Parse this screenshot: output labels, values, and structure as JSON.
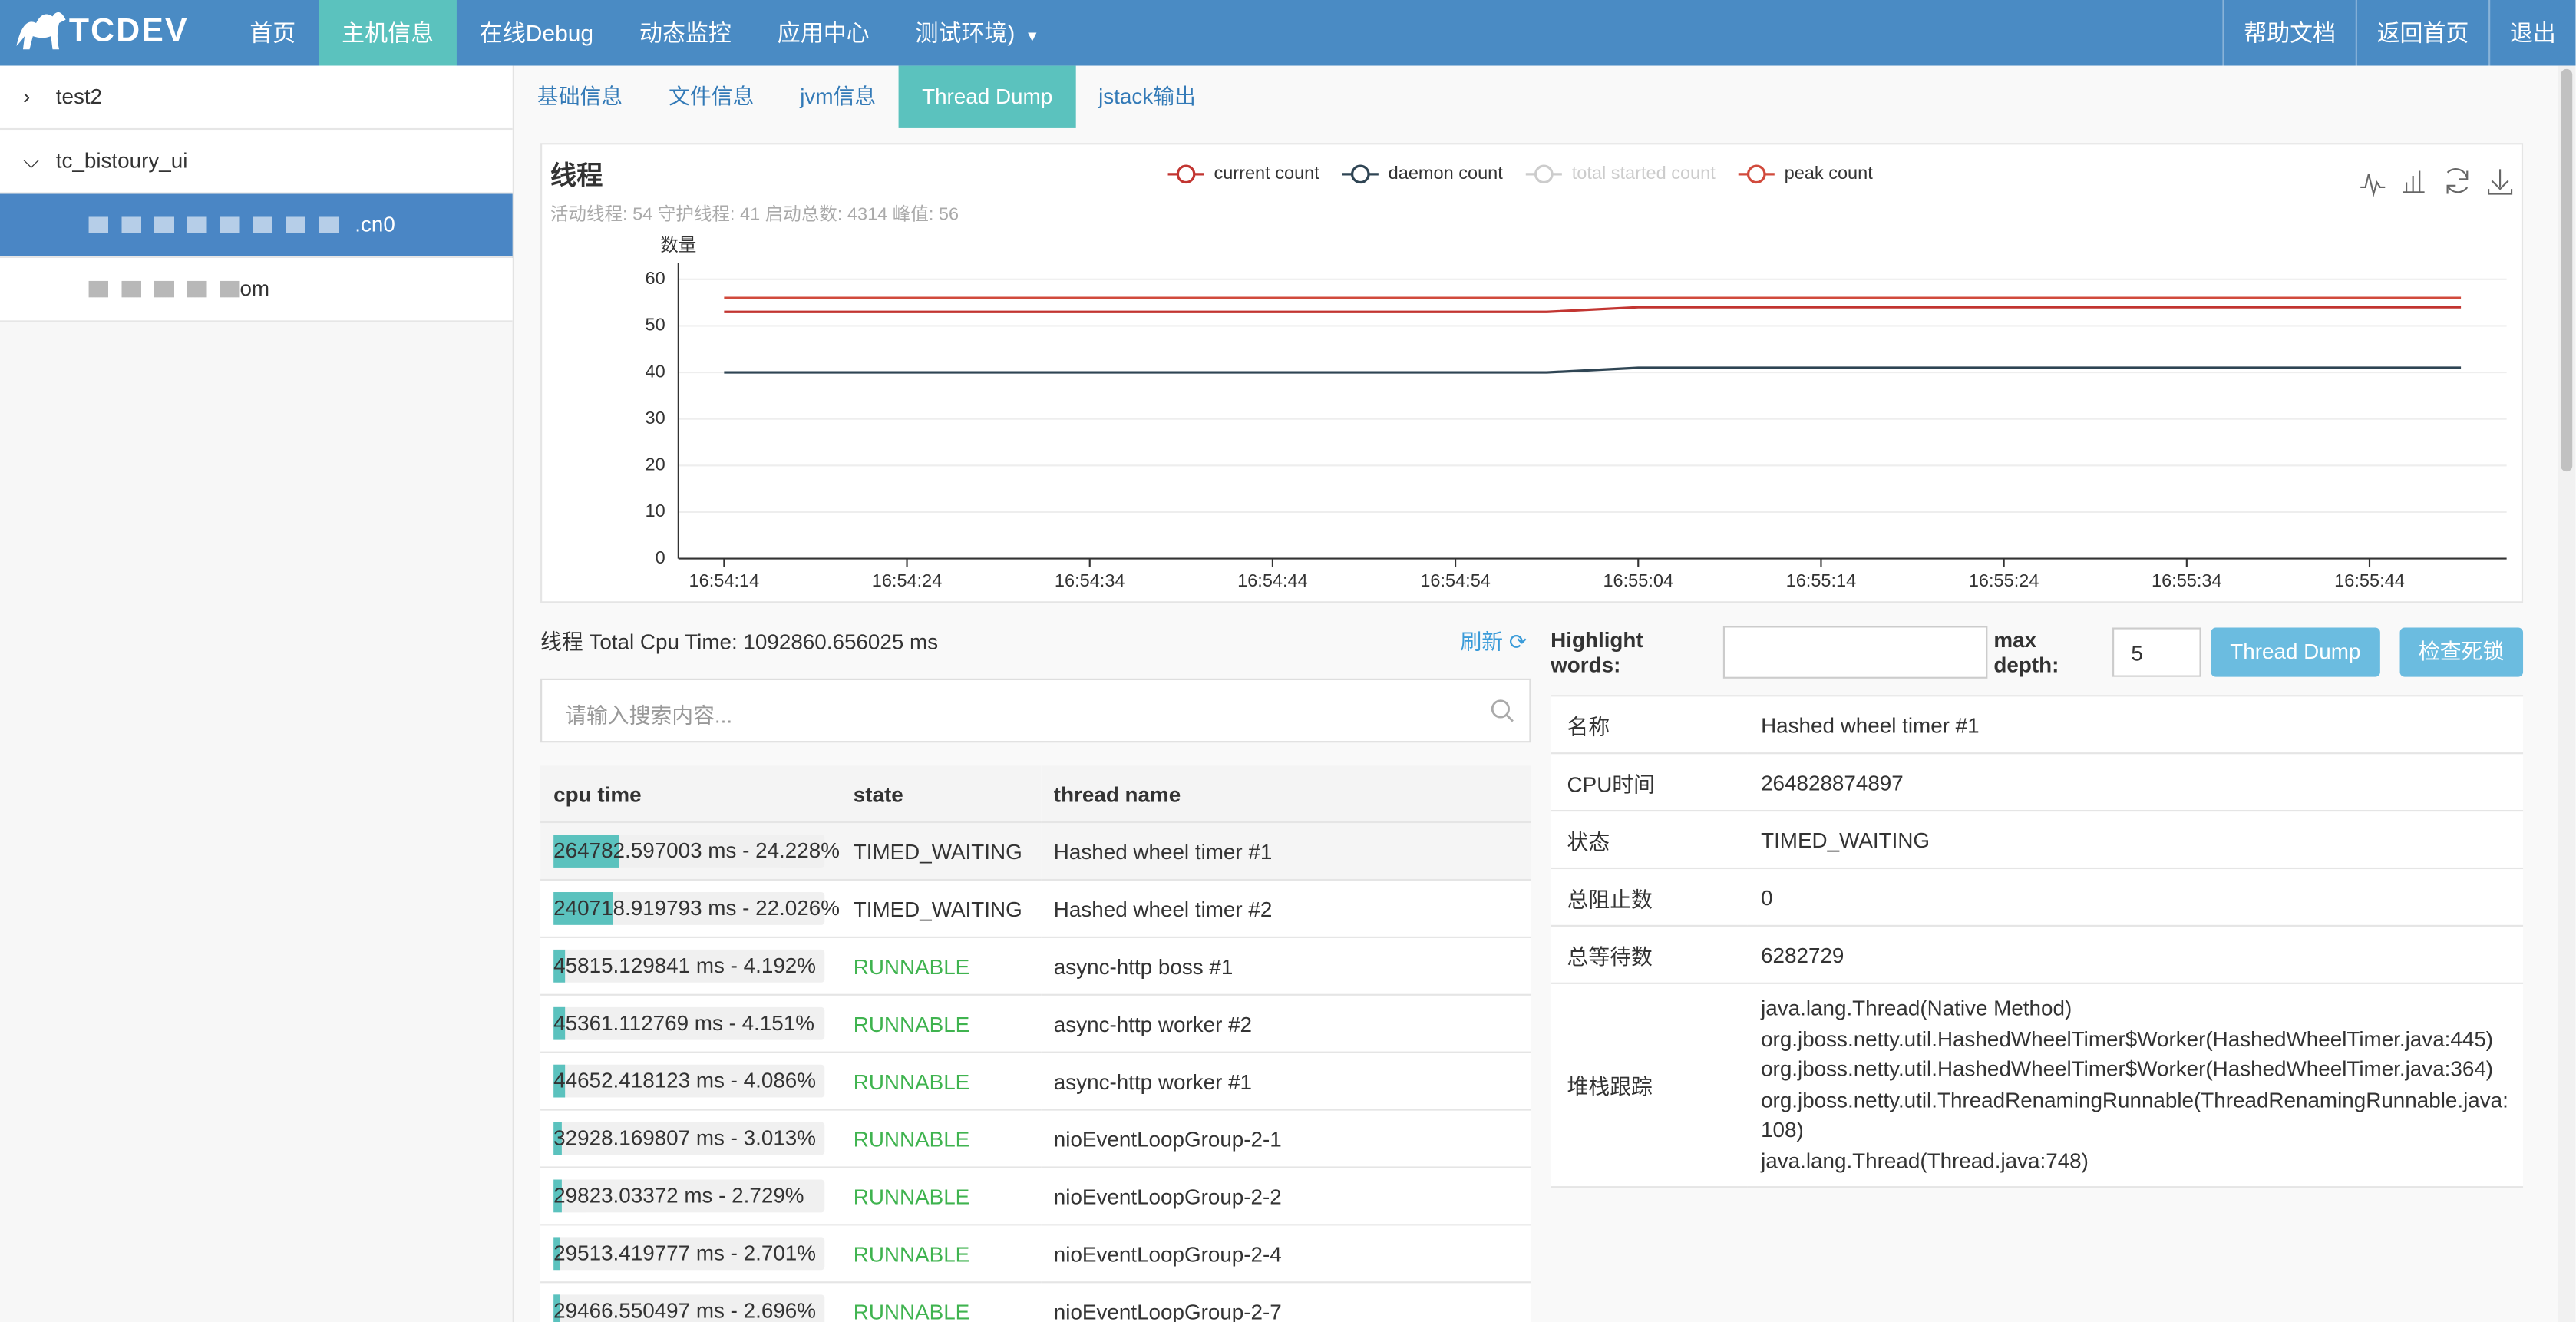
{
  "nav": {
    "brand": "TCDEV",
    "items": [
      "首页",
      "主机信息",
      "在线Debug",
      "动态监控",
      "应用中心",
      "测试环境)"
    ],
    "active": 1,
    "right": [
      "帮助文档",
      "返回首页",
      "退出"
    ]
  },
  "sidebar": {
    "items": [
      {
        "label": "test2",
        "level": 0,
        "expanded": false
      },
      {
        "label": "tc_bistoury_ui",
        "level": 0,
        "expanded": true
      },
      {
        "label": ".cn0",
        "level": 1,
        "selected": true
      },
      {
        "label": "om",
        "level": 1
      }
    ]
  },
  "tabs": {
    "items": [
      "基础信息",
      "文件信息",
      "jvm信息",
      "Thread Dump",
      "jstack输出"
    ],
    "active": 3
  },
  "chart_data": {
    "type": "line",
    "title": "线程",
    "subtitle": "活动线程: 54 守护线程: 41 启动总数: 4314 峰值: 56",
    "ylabel": "数量",
    "x": [
      "16:54:14",
      null,
      "16:54:24",
      null,
      "16:54:34",
      null,
      "16:54:44",
      null,
      "16:54:54",
      null,
      "16:55:04",
      null,
      "16:55:14",
      null,
      "16:55:24",
      null,
      "16:55:34",
      null,
      "16:55:44",
      null
    ],
    "series": [
      {
        "name": "current count",
        "color": "#c23531",
        "values": [
          53,
          53,
          53,
          53,
          53,
          53,
          53,
          53,
          53,
          53,
          54,
          54,
          54,
          54,
          54,
          54,
          54,
          54,
          54,
          54
        ]
      },
      {
        "name": "daemon count",
        "color": "#2f4554",
        "values": [
          40,
          40,
          40,
          40,
          40,
          40,
          40,
          40,
          40,
          40,
          41,
          41,
          41,
          41,
          41,
          41,
          41,
          41,
          41,
          41
        ]
      },
      {
        "name": "total started count",
        "color": "#cccccc",
        "selected": false
      },
      {
        "name": "peak count",
        "color": "#d14a3c",
        "values": [
          56,
          56,
          56,
          56,
          56,
          56,
          56,
          56,
          56,
          56,
          56,
          56,
          56,
          56,
          56,
          56,
          56,
          56,
          56,
          56
        ]
      }
    ],
    "ylim": [
      0,
      60
    ],
    "yticks": [
      0,
      10,
      20,
      30,
      40,
      50,
      60
    ],
    "grid": true
  },
  "threads": {
    "title": "线程 Total Cpu Time: 1092860.656025 ms",
    "refresh": "刷新",
    "search_placeholder": "请输入搜索内容...",
    "columns": [
      "cpu time",
      "state",
      "thread name"
    ],
    "rows": [
      {
        "cpu": "264782.597003 ms - 24.228%",
        "pct": 24.228,
        "state": "TIMED_WAITING",
        "color": "#333333",
        "name": "Hashed wheel timer #1"
      },
      {
        "cpu": "240718.919793 ms - 22.026%",
        "pct": 22.026,
        "state": "TIMED_WAITING",
        "color": "#333333",
        "name": "Hashed wheel timer #2"
      },
      {
        "cpu": "45815.129841 ms - 4.192%",
        "pct": 4.192,
        "state": "RUNNABLE",
        "color": "#3fb34f",
        "name": "async-http boss #1"
      },
      {
        "cpu": "45361.112769 ms - 4.151%",
        "pct": 4.151,
        "state": "RUNNABLE",
        "color": "#3fb34f",
        "name": "async-http worker #2"
      },
      {
        "cpu": "44652.418123 ms - 4.086%",
        "pct": 4.086,
        "state": "RUNNABLE",
        "color": "#3fb34f",
        "name": "async-http worker #1"
      },
      {
        "cpu": "32928.169807 ms - 3.013%",
        "pct": 3.013,
        "state": "RUNNABLE",
        "color": "#3fb34f",
        "name": "nioEventLoopGroup-2-1"
      },
      {
        "cpu": "29823.03372 ms - 2.729%",
        "pct": 2.729,
        "state": "RUNNABLE",
        "color": "#3fb34f",
        "name": "nioEventLoopGroup-2-2"
      },
      {
        "cpu": "29513.419777 ms - 2.701%",
        "pct": 2.701,
        "state": "RUNNABLE",
        "color": "#3fb34f",
        "name": "nioEventLoopGroup-2-4"
      },
      {
        "cpu": "29466.550497 ms - 2.696%",
        "pct": 2.696,
        "state": "RUNNABLE",
        "color": "#3fb34f",
        "name": "nioEventLoopGroup-2-7"
      }
    ]
  },
  "dump": {
    "highlight_label": "Highlight words:",
    "depth_label": "max depth:",
    "depth": "5",
    "buttons": [
      "Thread Dump",
      "检查死锁"
    ],
    "details": [
      {
        "label": "名称",
        "value": "Hashed wheel timer #1"
      },
      {
        "label": "CPU时间",
        "value": "264828874897"
      },
      {
        "label": "状态",
        "value": "TIMED_WAITING"
      },
      {
        "label": "总阻止数",
        "value": "0"
      },
      {
        "label": "总等待数",
        "value": "6282729"
      },
      {
        "label": "堆栈跟踪",
        "lines": [
          "java.lang.Thread(Native Method)",
          "org.jboss.netty.util.HashedWheelTimer$Worker(HashedWheelTimer.java:445)",
          "org.jboss.netty.util.HashedWheelTimer$Worker(HashedWheelTimer.java:364)",
          "org.jboss.netty.util.ThreadRenamingRunnable(ThreadRenamingRunnable.java:108)",
          "java.lang.Thread(Thread.java:748)"
        ]
      }
    ]
  }
}
